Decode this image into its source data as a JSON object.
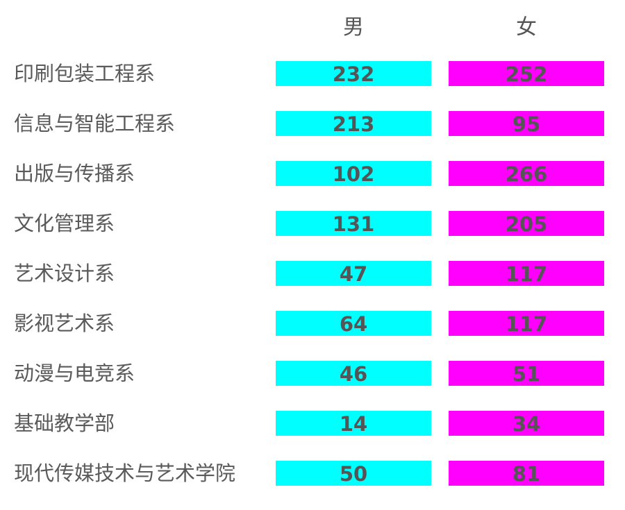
{
  "chart_data": {
    "type": "table",
    "columns": [
      "男",
      "女"
    ],
    "categories": [
      "印刷包装工程系",
      "信息与智能工程系",
      "出版与传播系",
      "文化管理系",
      "艺术设计系",
      "影视艺术系",
      "动漫与电竞系",
      "基础教学部",
      "现代传媒技术与艺术学院"
    ],
    "series": [
      {
        "name": "男",
        "values": [
          232,
          213,
          102,
          131,
          47,
          64,
          46,
          14,
          50
        ],
        "color": "#00ffff"
      },
      {
        "name": "女",
        "values": [
          252,
          95,
          266,
          205,
          117,
          117,
          51,
          34,
          81
        ],
        "color": "#ff00ff"
      }
    ]
  }
}
